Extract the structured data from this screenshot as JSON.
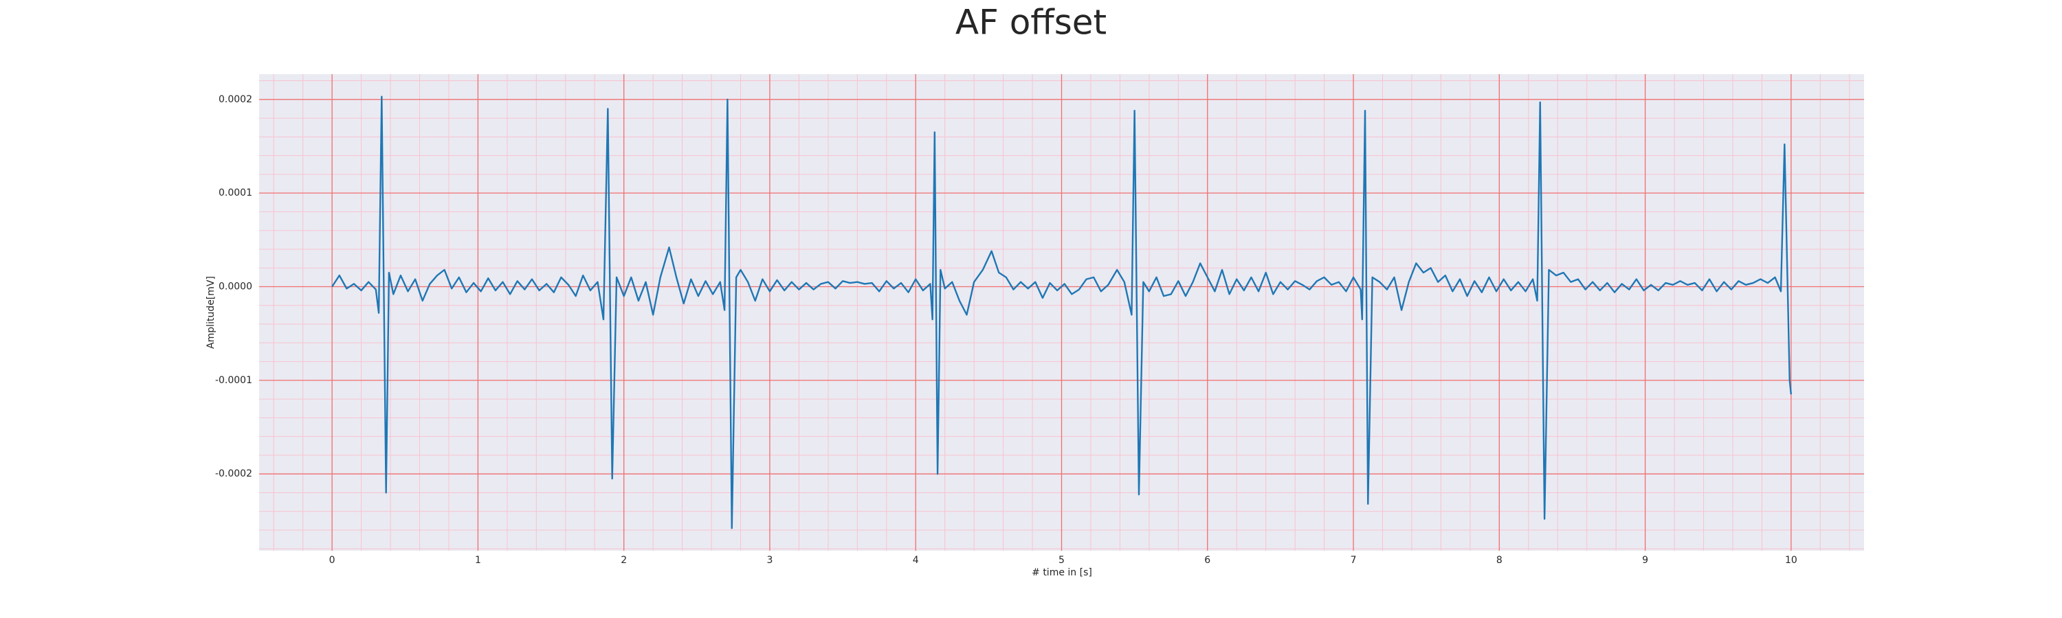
{
  "chart_data": {
    "type": "line",
    "title": "AF offset",
    "xlabel": "# time in [s]",
    "ylabel": "Amplitude[mV]",
    "color": "#1f77b4",
    "background": "#eaeaf2",
    "grid": true,
    "grid_color": "#f07070",
    "minor_grid_color": "#f7c3cf",
    "xlim": [
      -0.5,
      10.5
    ],
    "ylim": [
      -0.000282,
      0.000227
    ],
    "xticks": [
      0,
      1,
      2,
      3,
      4,
      5,
      6,
      7,
      8,
      9,
      10
    ],
    "yticks": [
      {
        "value": 0.0002,
        "label": "0.0002"
      },
      {
        "value": 0.0001,
        "label": "0.0001"
      },
      {
        "value": 0,
        "label": "0.0000"
      },
      {
        "value": -0.0001,
        "label": "-0.0001"
      },
      {
        "value": -0.0002,
        "label": "-0.0002"
      }
    ],
    "xminor_ticks": [
      -0.4,
      -0.2,
      0,
      0.2,
      0.4,
      0.6,
      0.8,
      1,
      1.2,
      1.4,
      1.6,
      1.8,
      2,
      2.2,
      2.4,
      2.6,
      2.8,
      3,
      3.2,
      3.4,
      3.6,
      3.8,
      4,
      4.2,
      4.4,
      4.6,
      4.8,
      5,
      5.2,
      5.4,
      5.6,
      5.8,
      6,
      6.2,
      6.4,
      6.6,
      6.8,
      7,
      7.2,
      7.4,
      7.6,
      7.8,
      8,
      8.2,
      8.4,
      8.6,
      8.8,
      9,
      9.2,
      9.4,
      9.6,
      9.8,
      10,
      10.2,
      10.4
    ],
    "yminor_ticks": [
      -0.00028,
      -0.00026,
      -0.00024,
      -0.00022,
      -0.0002,
      -0.00018,
      -0.00016,
      -0.00014,
      -0.00012,
      -0.0001,
      -8e-05,
      -6e-05,
      -4e-05,
      -2e-05,
      0,
      2e-05,
      4e-05,
      6e-05,
      8e-05,
      0.0001,
      0.00012,
      0.00014,
      0.00016,
      0.00018,
      0.0002,
      0.00022
    ],
    "x": [
      0,
      0.05,
      0.1,
      0.15,
      0.2,
      0.25,
      0.3,
      0.32,
      0.34,
      0.37,
      0.39,
      0.42,
      0.47,
      0.52,
      0.57,
      0.62,
      0.67,
      0.72,
      0.77,
      0.82,
      0.87,
      0.92,
      0.97,
      1.02,
      1.07,
      1.12,
      1.17,
      1.22,
      1.27,
      1.32,
      1.37,
      1.42,
      1.47,
      1.52,
      1.57,
      1.62,
      1.67,
      1.72,
      1.77,
      1.82,
      1.86,
      1.89,
      1.92,
      1.95,
      2.0,
      2.05,
      2.1,
      2.15,
      2.2,
      2.25,
      2.31,
      2.36,
      2.41,
      2.46,
      2.51,
      2.56,
      2.61,
      2.66,
      2.69,
      2.71,
      2.74,
      2.77,
      2.8,
      2.85,
      2.9,
      2.95,
      3.0,
      3.05,
      3.1,
      3.15,
      3.2,
      3.25,
      3.3,
      3.35,
      3.4,
      3.45,
      3.5,
      3.55,
      3.6,
      3.65,
      3.7,
      3.75,
      3.8,
      3.85,
      3.9,
      3.95,
      4.0,
      4.05,
      4.1,
      4.115,
      4.13,
      4.15,
      4.17,
      4.2,
      4.25,
      4.3,
      4.35,
      4.4,
      4.46,
      4.52,
      4.57,
      4.62,
      4.67,
      4.72,
      4.77,
      4.82,
      4.87,
      4.92,
      4.97,
      5.02,
      5.07,
      5.12,
      5.17,
      5.22,
      5.27,
      5.32,
      5.38,
      5.43,
      5.48,
      5.5,
      5.53,
      5.56,
      5.6,
      5.65,
      5.7,
      5.75,
      5.8,
      5.85,
      5.9,
      5.95,
      6.0,
      6.05,
      6.1,
      6.15,
      6.2,
      6.25,
      6.3,
      6.35,
      6.4,
      6.45,
      6.5,
      6.55,
      6.6,
      6.65,
      6.7,
      6.75,
      6.8,
      6.85,
      6.9,
      6.95,
      7.0,
      7.05,
      7.06,
      7.08,
      7.1,
      7.13,
      7.18,
      7.23,
      7.28,
      7.33,
      7.38,
      7.43,
      7.48,
      7.53,
      7.58,
      7.63,
      7.68,
      7.73,
      7.78,
      7.83,
      7.88,
      7.93,
      7.98,
      8.03,
      8.08,
      8.13,
      8.18,
      8.23,
      8.26,
      8.28,
      8.31,
      8.34,
      8.39,
      8.44,
      8.49,
      8.54,
      8.59,
      8.64,
      8.69,
      8.74,
      8.79,
      8.84,
      8.89,
      8.94,
      8.99,
      9.04,
      9.09,
      9.14,
      9.19,
      9.24,
      9.29,
      9.34,
      9.39,
      9.44,
      9.49,
      9.54,
      9.59,
      9.64,
      9.69,
      9.74,
      9.79,
      9.84,
      9.89,
      9.93,
      9.955,
      9.99,
      10.0
    ],
    "values": [
      0,
      1.2e-05,
      -2e-06,
      3e-06,
      -4e-06,
      5e-06,
      -3e-06,
      -2.8e-05,
      0.000203,
      -0.00022,
      1.5e-05,
      -8e-06,
      1.2e-05,
      -5e-06,
      8e-06,
      -1.5e-05,
      3e-06,
      1.2e-05,
      1.8e-05,
      -2e-06,
      1e-05,
      -6e-06,
      4e-06,
      -5e-06,
      9e-06,
      -4e-06,
      5e-06,
      -8e-06,
      6e-06,
      -3e-06,
      8e-06,
      -4e-06,
      3e-06,
      -6e-06,
      1e-05,
      2e-06,
      -1e-05,
      1.2e-05,
      -4e-06,
      5e-06,
      -3.5e-05,
      0.00019,
      -0.000205,
      1e-05,
      -1e-05,
      1e-05,
      -1.5e-05,
      5e-06,
      -3e-05,
      1e-05,
      4.2e-05,
      1e-05,
      -1.8e-05,
      8e-06,
      -1e-05,
      6e-06,
      -8e-06,
      5e-06,
      -2.5e-05,
      0.0002,
      -0.000258,
      1e-05,
      1.8e-05,
      5e-06,
      -1.5e-05,
      8e-06,
      -5e-06,
      7e-06,
      -4e-06,
      5e-06,
      -3e-06,
      4e-06,
      -3e-06,
      3e-06,
      5e-06,
      -2e-06,
      6e-06,
      4e-06,
      5e-06,
      3e-06,
      4e-06,
      -5e-06,
      6e-06,
      -2e-06,
      4e-06,
      -6e-06,
      8e-06,
      -4e-06,
      3e-06,
      -3.5e-05,
      0.000165,
      -0.0002,
      1.8e-05,
      -2e-06,
      5e-06,
      -1.5e-05,
      -3e-05,
      5e-06,
      1.8e-05,
      3.8e-05,
      1.5e-05,
      1e-05,
      -3e-06,
      5e-06,
      -2e-06,
      5e-06,
      -1.2e-05,
      4e-06,
      -4e-06,
      3e-06,
      -8e-06,
      -3e-06,
      8e-06,
      1e-05,
      -5e-06,
      2e-06,
      1.8e-05,
      5e-06,
      -3e-05,
      0.000188,
      -0.000222,
      5e-06,
      -5e-06,
      1e-05,
      -1e-05,
      -8e-06,
      6e-06,
      -1e-05,
      5e-06,
      2.5e-05,
      1e-05,
      -5e-06,
      1.8e-05,
      -8e-06,
      8e-06,
      -4e-06,
      1e-05,
      -5e-06,
      1.5e-05,
      -8e-06,
      5e-06,
      -3e-06,
      6e-06,
      2e-06,
      -3e-06,
      6e-06,
      1e-05,
      2e-06,
      5e-06,
      -5e-06,
      1e-05,
      -3e-06,
      -3.5e-05,
      0.000188,
      -0.000232,
      1e-05,
      5e-06,
      -3e-06,
      1e-05,
      -2.5e-05,
      5e-06,
      2.5e-05,
      1.5e-05,
      2e-05,
      5e-06,
      1.2e-05,
      -5e-06,
      8e-06,
      -1e-05,
      6e-06,
      -6e-06,
      1e-05,
      -5e-06,
      8e-06,
      -4e-06,
      5e-06,
      -5e-06,
      8e-06,
      -1.5e-05,
      0.000197,
      -0.000248,
      1.8e-05,
      1.2e-05,
      1.5e-05,
      5e-06,
      8e-06,
      -3e-06,
      5e-06,
      -4e-06,
      4e-06,
      -6e-06,
      3e-06,
      -3e-06,
      8e-06,
      -4e-06,
      2e-06,
      -4e-06,
      4e-06,
      2e-06,
      6e-06,
      2e-06,
      4e-06,
      -4e-06,
      8e-06,
      -5e-06,
      5e-06,
      -3e-06,
      6e-06,
      2e-06,
      4e-06,
      8e-06,
      4e-06,
      1e-05,
      -5e-06,
      0.000152,
      -0.0001,
      -0.000115
    ]
  }
}
